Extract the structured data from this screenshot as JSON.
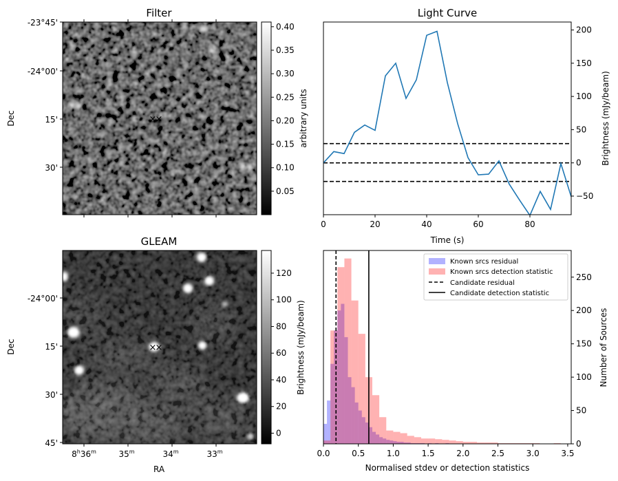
{
  "panels": {
    "filter": {
      "title": "Filter",
      "ylabel": "Dec",
      "cbar_label": "arbitrary units",
      "dec_ticks": [
        "-23°45'",
        "-24°00'",
        "15'",
        "30'"
      ],
      "cbar_ticks": [
        "0.40",
        "0.35",
        "0.30",
        "0.25",
        "0.20",
        "0.15",
        "0.10",
        "0.05"
      ],
      "cbar_range": [
        0.0,
        0.41
      ]
    },
    "gleam": {
      "title": "GLEAM",
      "ylabel": "Dec",
      "xlabel": "RA",
      "cbar_label": "Brightness (mJy/beam)",
      "dec_ticks": [
        "-24°00'",
        "15'",
        "30'",
        "45'"
      ],
      "ra_ticks": [
        {
          "main": "8",
          "sup1": "h",
          "mid": "36",
          "sup2": "m"
        },
        {
          "main": "",
          "sup1": "",
          "mid": "35",
          "sup2": "m"
        },
        {
          "main": "",
          "sup1": "",
          "mid": "34",
          "sup2": "m"
        },
        {
          "main": "",
          "sup1": "",
          "mid": "33",
          "sup2": "m"
        }
      ],
      "cbar_ticks": [
        "120",
        "100",
        "80",
        "60",
        "40",
        "20",
        "0"
      ],
      "cbar_range": [
        -8,
        137
      ]
    },
    "markers": {
      "blue": "#0000cc",
      "red": "#cc0000",
      "symbol": "×"
    }
  },
  "chart_data": [
    {
      "type": "line",
      "title": "Light Curve",
      "xlabel": "Time (s)",
      "ylabel": "Brightness (mJy/beam)",
      "xlim": [
        0,
        96
      ],
      "ylim": [
        -78,
        212
      ],
      "xticks": [
        0,
        20,
        40,
        60,
        80
      ],
      "yticks": [
        -50,
        0,
        50,
        100,
        150,
        200
      ],
      "grid": false,
      "line_color": "#1f77b4",
      "x": [
        0,
        4,
        8,
        12,
        16,
        20,
        24,
        28,
        32,
        36,
        40,
        44,
        48,
        52,
        56,
        60,
        64,
        68,
        72,
        76,
        80,
        84,
        88,
        92,
        96
      ],
      "y": [
        0,
        17,
        14,
        46,
        57,
        49,
        131,
        150,
        97,
        125,
        192,
        198,
        121,
        59,
        8,
        -18,
        -17,
        3,
        -32,
        -56,
        -79,
        -43,
        -70,
        -1,
        -51
      ],
      "hlines": [
        {
          "y": 29,
          "style": "dashed"
        },
        {
          "y": 0,
          "style": "dashed"
        },
        {
          "y": -28,
          "style": "dashed"
        }
      ]
    },
    {
      "type": "histogram",
      "xlabel": "Normalised stdev or detection statistics",
      "ylabel": "Number of Sources",
      "xlim": [
        0,
        3.55
      ],
      "ylim": [
        0,
        290
      ],
      "xticks": [
        0.0,
        0.5,
        1.0,
        1.5,
        2.0,
        2.5,
        3.0,
        3.5
      ],
      "yticks": [
        0,
        50,
        100,
        150,
        200,
        250
      ],
      "legend_position": "top-right",
      "series": [
        {
          "name": "Known srcs residual",
          "color": "#0000ff",
          "alpha": 0.3,
          "bin_width": 0.05,
          "start": 0.0,
          "counts": [
            30,
            65,
            120,
            170,
            200,
            210,
            160,
            100,
            85,
            62,
            50,
            40,
            32,
            25,
            18,
            14,
            10,
            8,
            6,
            5,
            4,
            3,
            3,
            2,
            2,
            1,
            1,
            1,
            1,
            0,
            1,
            0,
            1,
            0,
            0,
            1
          ]
        },
        {
          "name": "Known srcs detection statistic",
          "color": "#ff0000",
          "alpha": 0.3,
          "bin_width": 0.1,
          "start": 0.0,
          "counts": [
            5,
            170,
            265,
            278,
            215,
            165,
            100,
            73,
            40,
            20,
            18,
            16,
            12,
            10,
            8,
            8,
            7,
            6,
            5,
            4,
            3,
            3,
            2,
            2,
            2,
            1,
            1,
            1,
            1,
            1,
            1,
            0,
            0,
            1,
            0,
            0
          ]
        },
        {
          "name": "Candidate residual",
          "style": "dashed",
          "value": 0.18
        },
        {
          "name": "Candidate detection statistic",
          "style": "solid",
          "value": 0.65
        }
      ]
    }
  ]
}
